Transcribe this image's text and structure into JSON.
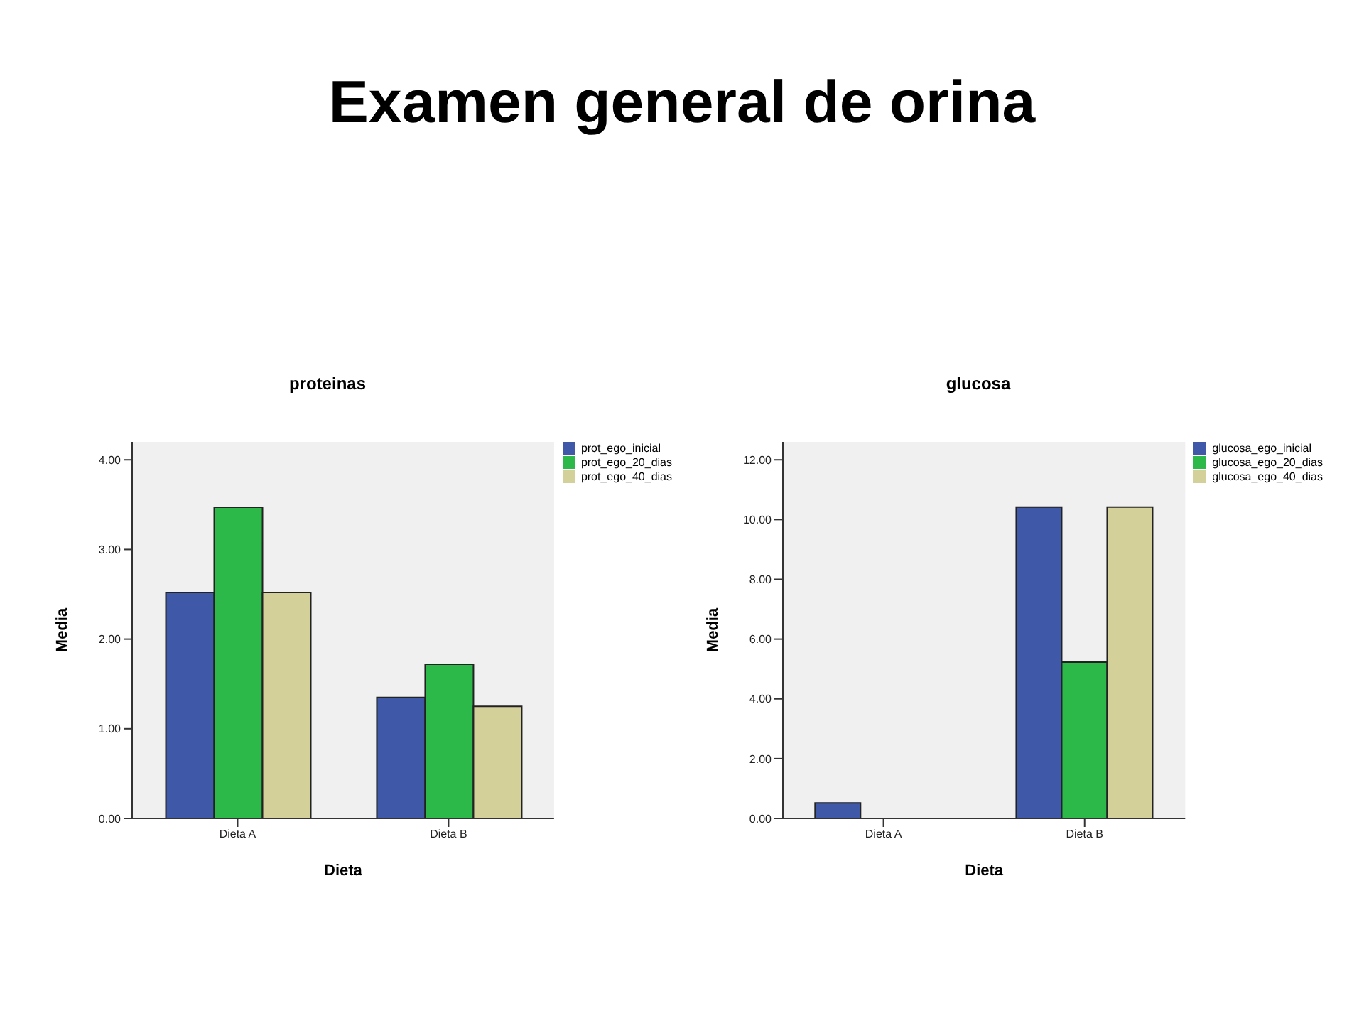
{
  "chart_data": [
    {
      "type": "bar",
      "title": "proteinas",
      "annotations": [
        "Examen general de orina"
      ],
      "xlabel": "Dieta",
      "ylabel": "Media",
      "categories": [
        "Dieta A",
        "Dieta B"
      ],
      "series": [
        {
          "name": "prot_ego_inicial",
          "color": "#3f58a8",
          "values": [
            2.52,
            1.35
          ]
        },
        {
          "name": "prot_ego_20_dias",
          "color": "#2db84a",
          "values": [
            3.47,
            1.72
          ]
        },
        {
          "name": "prot_ego_40_dias",
          "color": "#d4d09a",
          "values": [
            2.52,
            1.25
          ]
        }
      ],
      "ylim": [
        0,
        4.2
      ],
      "yticks": [
        {
          "value": 0,
          "label": "0.00"
        },
        {
          "value": 1,
          "label": "1.00"
        },
        {
          "value": 2,
          "label": "2.00"
        },
        {
          "value": 3,
          "label": "3.00"
        },
        {
          "value": 4,
          "label": "4.00"
        }
      ],
      "grid": false,
      "legend": "top right"
    },
    {
      "type": "bar",
      "title": "glucosa",
      "xlabel": "Dieta",
      "ylabel": "Media",
      "categories": [
        "Dieta A",
        "Dieta B"
      ],
      "series": [
        {
          "name": "glucosa_ego_inicial",
          "color": "#3f58a8",
          "values": [
            0.52,
            10.42
          ]
        },
        {
          "name": "glucosa_ego_20_dias",
          "color": "#2db84a",
          "values": [
            0,
            5.23
          ]
        },
        {
          "name": "glucosa_ego_40_dias",
          "color": "#d4d09a",
          "values": [
            0,
            10.42
          ]
        }
      ],
      "ylim": [
        0,
        12.6
      ],
      "yticks": [
        {
          "value": 0,
          "label": "0.00"
        },
        {
          "value": 2,
          "label": "2.00"
        },
        {
          "value": 4,
          "label": "4.00"
        },
        {
          "value": 6,
          "label": "6.00"
        },
        {
          "value": 8,
          "label": "8.00"
        },
        {
          "value": 10,
          "label": "10.00"
        },
        {
          "value": 12,
          "label": "12.00"
        }
      ],
      "grid": false,
      "legend": "top right"
    }
  ]
}
